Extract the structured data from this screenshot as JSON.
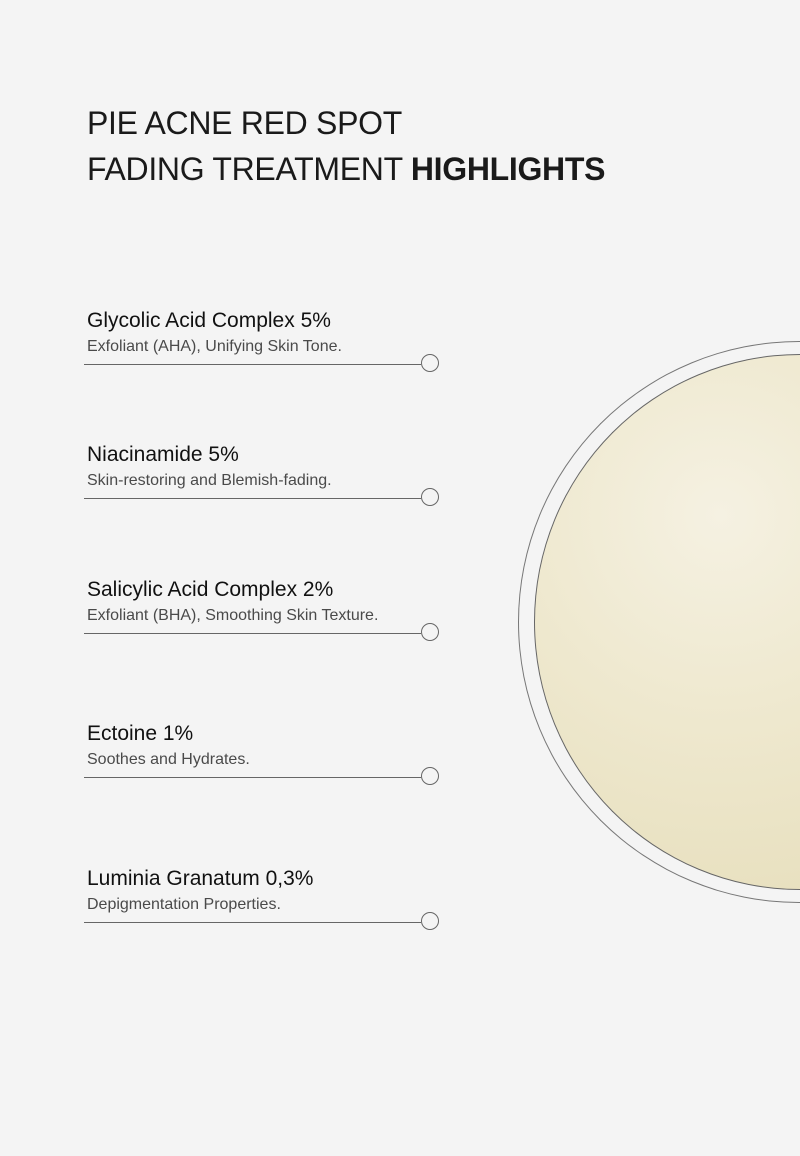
{
  "heading": {
    "line1": "PIE ACNE RED SPOT",
    "line2_light": "FADING TREATMENT",
    "line2_bold": "HIGHLIGHTS"
  },
  "ingredients": [
    {
      "name": "Glycolic Acid Complex 5%",
      "description": "Exfoliant (AHA), Unifying Skin Tone."
    },
    {
      "name": "Niacinamide 5%",
      "description": "Skin-restoring and Blemish-fading."
    },
    {
      "name": "Salicylic Acid Complex 2%",
      "description": "Exfoliant (BHA), Smoothing Skin Texture."
    },
    {
      "name": "Ectoine 1%",
      "description": "Soothes and Hydrates."
    },
    {
      "name": "Luminia Granatum 0,3%",
      "description": "Depigmentation Properties."
    }
  ],
  "colors": {
    "background": "#f4f4f4",
    "cream": "#efe9d0"
  }
}
